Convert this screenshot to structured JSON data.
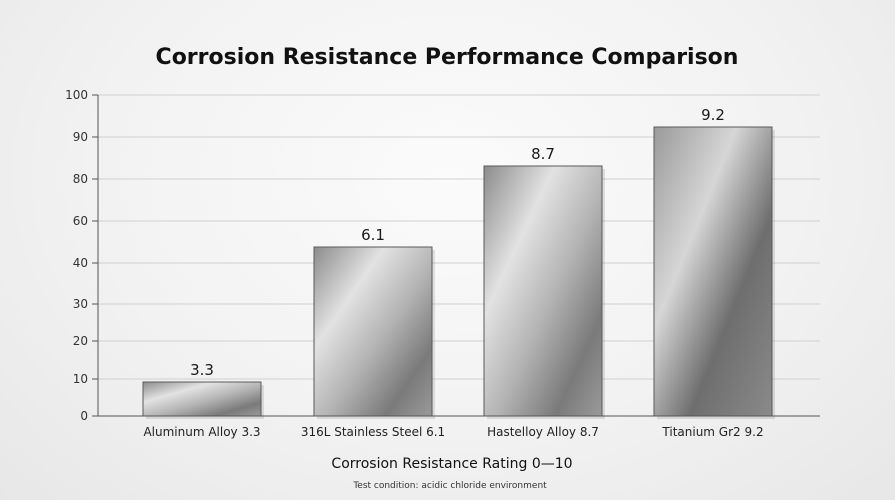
{
  "chart_data": {
    "type": "bar",
    "title": "Corrosion Resistance Performance Comparison",
    "xlabel": "Corrosion Resistance Rating 0—10",
    "ylabel": "",
    "footnote": "Test condition: acidic chloride environment",
    "y_ticks": [
      "0",
      "10",
      "20",
      "30",
      "40",
      "60",
      "80",
      "90",
      "100"
    ],
    "categories": [
      "Aluminum Alloy 3.3",
      "316L Stainless Steel 6.1",
      "Hastelloy Alloy 8.7",
      "Titanium Gr2 9.2"
    ],
    "values": [
      3.3,
      6.1,
      8.7,
      9.2
    ],
    "value_labels": [
      "3.3",
      "6.1",
      "8.7",
      "9.2"
    ],
    "y_tick_values": [
      0,
      10,
      20,
      30,
      40,
      60,
      80,
      90,
      100
    ],
    "grid": true,
    "legend": "none",
    "colors": {
      "bar_light": "#e6e6e6",
      "bar_mid": "#a9a9a9",
      "bar_dark": "#6b6b6b",
      "grid": "#d0d0d0",
      "axis": "#555555"
    }
  }
}
